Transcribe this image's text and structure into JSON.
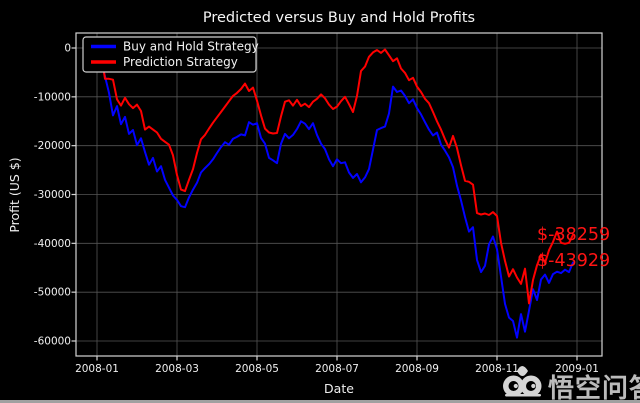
{
  "title": "Predicted versus Buy and Hold Profits",
  "axes": {
    "xlabel": "Date",
    "ylabel": "Profit  (US $)",
    "x_ticks": [
      "2008-01",
      "2008-03",
      "2008-05",
      "2008-07",
      "2008-09",
      "2008-11",
      "2009-01"
    ],
    "y_ticks": [
      "0",
      "-10000",
      "-20000",
      "-30000",
      "-40000",
      "-50000",
      "-60000"
    ],
    "y_tick_values": [
      0,
      -10000,
      -20000,
      -30000,
      -40000,
      -50000,
      -60000
    ]
  },
  "legend": {
    "items": [
      {
        "label": "Buy and Hold Strategy",
        "color": "#0202ff"
      },
      {
        "label": "Prediction Strategy",
        "color": "#ff0000"
      }
    ]
  },
  "annotations": [
    {
      "text": "$-38259",
      "color": "#ff1414",
      "series": "Prediction Strategy"
    },
    {
      "text": "$-43929",
      "color": "#ff1414",
      "series": "Buy and Hold Strategy"
    }
  ],
  "watermark": {
    "text": "悟空问答",
    "icon": "cloud-swirl-logo"
  },
  "colors": {
    "background": "#000000",
    "grid": "#555555",
    "spine": "#d4d4d4",
    "text": "#efefef"
  },
  "chart_data": {
    "type": "line",
    "title": "Predicted versus Buy and Hold Profits",
    "xlabel": "Date",
    "ylabel": "Profit (US $)",
    "x_tick_labels": [
      "2008-01",
      "2008-03",
      "2008-05",
      "2008-07",
      "2008-09",
      "2008-11",
      "2009-01"
    ],
    "x_range": [
      "2008-01-01",
      "2008-12-22"
    ],
    "points_per_series": 120,
    "sample_interval_days": 3,
    "ylim": [
      -63000,
      3000
    ],
    "grid": true,
    "legend_position": "upper left",
    "background": "black",
    "final_values": {
      "Prediction Strategy": -38259,
      "Buy and Hold Strategy": -43929
    },
    "series": [
      {
        "name": "Buy and Hold Strategy",
        "color": "#0202ff",
        "values": [
          0,
          -2800,
          -5800,
          -9200,
          -13800,
          -11900,
          -15600,
          -14100,
          -17600,
          -16800,
          -19900,
          -18500,
          -21300,
          -23900,
          -22500,
          -25300,
          -24200,
          -27000,
          -28600,
          -30200,
          -31100,
          -32400,
          -32600,
          -30600,
          -29000,
          -27600,
          -25500,
          -24600,
          -23800,
          -22800,
          -21500,
          -20300,
          -19300,
          -19800,
          -18600,
          -18200,
          -17700,
          -17900,
          -15200,
          -15700,
          -15400,
          -18400,
          -19600,
          -22500,
          -23000,
          -23600,
          -19600,
          -17600,
          -18500,
          -17800,
          -16600,
          -15000,
          -15500,
          -16600,
          -15400,
          -17800,
          -19600,
          -20700,
          -22800,
          -24200,
          -22800,
          -23600,
          -23400,
          -25500,
          -26600,
          -25800,
          -27500,
          -26500,
          -24800,
          -20800,
          -16800,
          -16400,
          -16100,
          -13400,
          -7900,
          -9000,
          -8700,
          -9800,
          -11300,
          -10500,
          -12300,
          -13600,
          -15200,
          -16700,
          -17900,
          -17300,
          -19800,
          -21000,
          -22400,
          -24400,
          -28200,
          -31200,
          -34600,
          -37600,
          -36700,
          -43400,
          -45900,
          -44600,
          -40200,
          -38600,
          -41200,
          -46800,
          -52400,
          -55200,
          -55900,
          -59300,
          -54500,
          -58100,
          -53800,
          -49400,
          -51600,
          -47400,
          -46400,
          -48100,
          -46300,
          -45800,
          -46100,
          -45400,
          -45900,
          -43929
        ]
      },
      {
        "name": "Prediction Strategy",
        "color": "#ff0000",
        "values": [
          0,
          -800,
          -6300,
          -6300,
          -6500,
          -10500,
          -11800,
          -10200,
          -11500,
          -12300,
          -11600,
          -12900,
          -16700,
          -16100,
          -16700,
          -17300,
          -18600,
          -19200,
          -19800,
          -22000,
          -26000,
          -29000,
          -29300,
          -27000,
          -24800,
          -21500,
          -18700,
          -17800,
          -16500,
          -15300,
          -14200,
          -13100,
          -12000,
          -10900,
          -9800,
          -9200,
          -8400,
          -7300,
          -8800,
          -8100,
          -10800,
          -13800,
          -16500,
          -17300,
          -17500,
          -17400,
          -14000,
          -11000,
          -10700,
          -11800,
          -10600,
          -11900,
          -11400,
          -12100,
          -11000,
          -10400,
          -9500,
          -10300,
          -11600,
          -12500,
          -12000,
          -10900,
          -10000,
          -11500,
          -13100,
          -9800,
          -4700,
          -3800,
          -1800,
          -900,
          -400,
          -1000,
          -300,
          -1500,
          -2700,
          -2100,
          -4200,
          -5100,
          -6600,
          -6100,
          -7900,
          -9000,
          -10400,
          -11300,
          -13100,
          -15000,
          -16700,
          -18700,
          -20400,
          -18000,
          -20500,
          -24000,
          -27200,
          -27400,
          -28000,
          -33800,
          -34100,
          -33900,
          -34200,
          -33600,
          -34400,
          -39900,
          -43600,
          -46800,
          -45300,
          -47000,
          -48300,
          -45200,
          -52300,
          -47500,
          -44500,
          -42300,
          -44000,
          -41400,
          -39700,
          -37600,
          -39900,
          -40100,
          -39900,
          -38259
        ]
      }
    ]
  }
}
